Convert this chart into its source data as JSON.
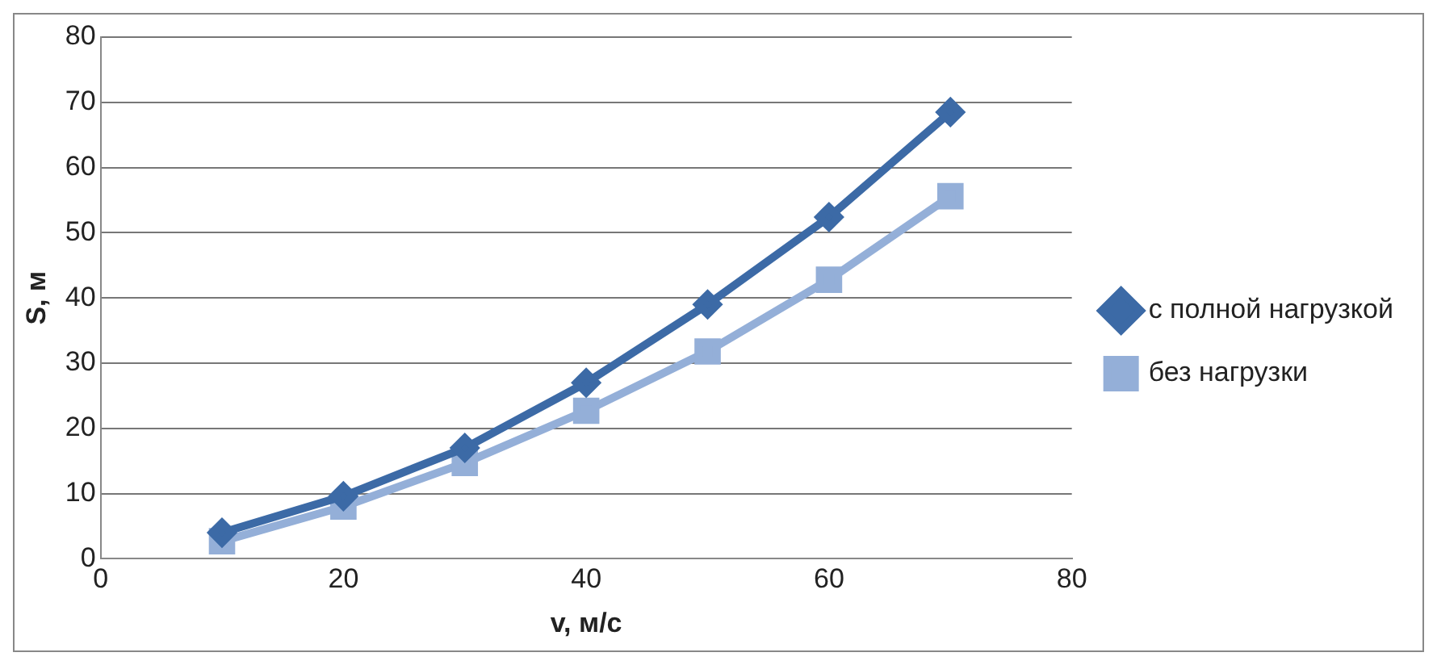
{
  "chart_data": {
    "type": "line",
    "xlabel": "v, м/с",
    "ylabel": "S, м",
    "x": [
      10,
      20,
      30,
      40,
      50,
      60,
      70
    ],
    "series": [
      {
        "name": "с полной нагрузкой",
        "color": "#3c6aa6",
        "marker": "diamond",
        "values": [
          4,
          9.6,
          17,
          27,
          39,
          52.4,
          68.5
        ]
      },
      {
        "name": "без нагрузки",
        "color": "#94afd8",
        "marker": "square",
        "values": [
          2.7,
          8,
          14.7,
          22.7,
          31.8,
          42.8,
          55.6
        ]
      }
    ],
    "xlim": [
      0,
      80
    ],
    "xticks": [
      0,
      20,
      40,
      60,
      80
    ],
    "ylim": [
      0,
      80
    ],
    "yticks": [
      0,
      10,
      20,
      30,
      40,
      50,
      60,
      70,
      80
    ],
    "grid": "y",
    "legend": "right",
    "line_style": "solid"
  }
}
